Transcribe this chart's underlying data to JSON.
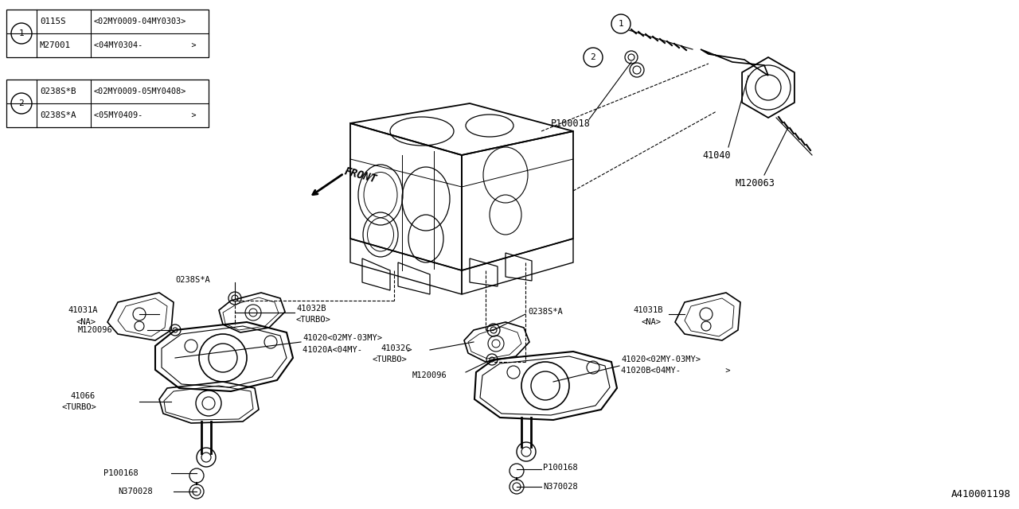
{
  "bg_color": "#ffffff",
  "lc": "#000000",
  "fig_w": 12.8,
  "fig_h": 6.4,
  "catalog_id": "A410001198",
  "table1_rows": [
    [
      "0115S",
      "<02MY0009-04MY0303>"
    ],
    [
      "M27001",
      "<04MY0304-          >"
    ]
  ],
  "table2_rows": [
    [
      "0238S*B",
      "<02MY0009-05MY0408>"
    ],
    [
      "0238S*A",
      "<05MY0409-          >"
    ]
  ],
  "fs": 7.5,
  "fs_table": 7.8
}
